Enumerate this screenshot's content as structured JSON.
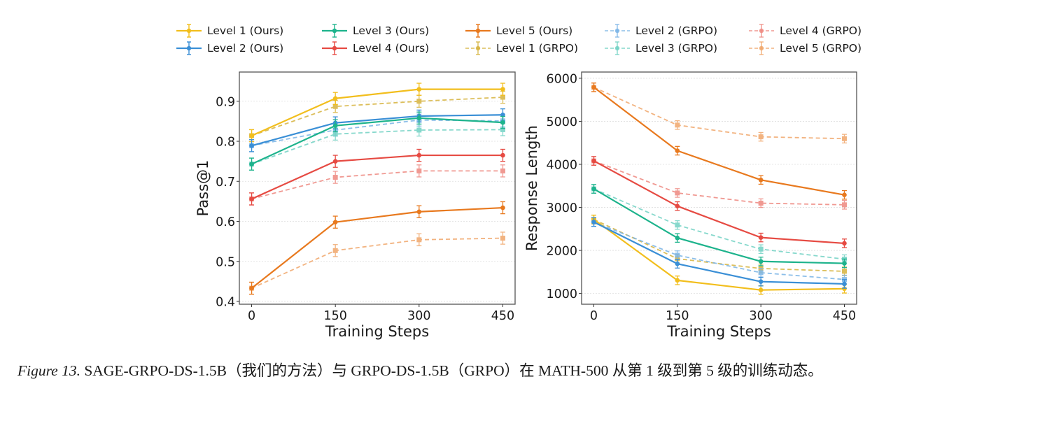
{
  "legend": [
    {
      "label": "Level 1 (Ours)",
      "color": "#F2BE1C",
      "dashed": false
    },
    {
      "label": "Level 2 (Ours)",
      "color": "#3A8FD6",
      "dashed": false
    },
    {
      "label": "Level 3 (Ours)",
      "color": "#1DB38C",
      "dashed": false
    },
    {
      "label": "Level 4 (Ours)",
      "color": "#E64A42",
      "dashed": false
    },
    {
      "label": "Level 5 (Ours)",
      "color": "#E8791E",
      "dashed": false
    },
    {
      "label": "Level 1 (GRPO)",
      "color": "#D6B33E",
      "dashed": true
    },
    {
      "label": "Level 2 (GRPO)",
      "color": "#7AB4E6",
      "dashed": true
    },
    {
      "label": "Level 3 (GRPO)",
      "color": "#72D2C4",
      "dashed": true
    },
    {
      "label": "Level 4 (GRPO)",
      "color": "#EE8880",
      "dashed": true
    },
    {
      "label": "Level 5 (GRPO)",
      "color": "#F0A66A",
      "dashed": true
    }
  ],
  "chart_data": [
    {
      "type": "line",
      "title": "",
      "xlabel": "Training Steps",
      "ylabel": "Pass@1",
      "x": [
        0,
        150,
        300,
        450
      ],
      "xticks": [
        "0",
        "150",
        "300",
        "450"
      ],
      "yticks": [
        "0.4",
        "0.5",
        "0.6",
        "0.7",
        "0.8",
        "0.9"
      ],
      "ytick_values": [
        0.4,
        0.5,
        0.6,
        0.7,
        0.8,
        0.9
      ],
      "ylim": [
        0.393,
        0.973
      ],
      "xlim": [
        -22,
        472
      ],
      "grid": true,
      "error_bar": 0.015,
      "series": [
        {
          "name": "Level 1 (Ours)",
          "values": [
            0.814,
            0.907,
            0.93,
            0.93
          ]
        },
        {
          "name": "Level 2 (Ours)",
          "values": [
            0.789,
            0.846,
            0.863,
            0.866
          ]
        },
        {
          "name": "Level 3 (Ours)",
          "values": [
            0.743,
            0.839,
            0.858,
            0.847
          ]
        },
        {
          "name": "Level 4 (Ours)",
          "values": [
            0.656,
            0.75,
            0.765,
            0.765
          ]
        },
        {
          "name": "Level 5 (Ours)",
          "values": [
            0.433,
            0.598,
            0.624,
            0.634
          ]
        },
        {
          "name": "Level 1 (GRPO)",
          "values": [
            0.814,
            0.887,
            0.9,
            0.91
          ]
        },
        {
          "name": "Level 2 (GRPO)",
          "values": [
            0.789,
            0.828,
            0.853,
            0.851
          ]
        },
        {
          "name": "Level 3 (GRPO)",
          "values": [
            0.743,
            0.818,
            0.828,
            0.829
          ]
        },
        {
          "name": "Level 4 (GRPO)",
          "values": [
            0.656,
            0.71,
            0.726,
            0.726
          ]
        },
        {
          "name": "Level 5 (GRPO)",
          "values": [
            0.433,
            0.527,
            0.554,
            0.558
          ]
        }
      ]
    },
    {
      "type": "line",
      "title": "",
      "xlabel": "Training Steps",
      "ylabel": "Response Length",
      "x": [
        0,
        150,
        300,
        450
      ],
      "xticks": [
        "0",
        "150",
        "300",
        "450"
      ],
      "yticks": [
        "1000",
        "2000",
        "3000",
        "4000",
        "5000",
        "6000"
      ],
      "ytick_values": [
        1000,
        2000,
        3000,
        4000,
        5000,
        6000
      ],
      "ylim": [
        750,
        6145
      ],
      "xlim": [
        -22,
        472
      ],
      "grid": true,
      "error_bar": 100,
      "series": [
        {
          "name": "Level 1 (Ours)",
          "values": [
            2720,
            1305,
            1080,
            1110
          ]
        },
        {
          "name": "Level 2 (Ours)",
          "values": [
            2660,
            1690,
            1275,
            1222
          ]
        },
        {
          "name": "Level 3 (Ours)",
          "values": [
            3430,
            2290,
            1745,
            1700
          ]
        },
        {
          "name": "Level 4 (Ours)",
          "values": [
            4080,
            3030,
            2300,
            2165
          ]
        },
        {
          "name": "Level 5 (Ours)",
          "values": [
            5790,
            4317,
            3638,
            3290
          ]
        },
        {
          "name": "Level 1 (GRPO)",
          "values": [
            2720,
            1808,
            1580,
            1515
          ]
        },
        {
          "name": "Level 2 (GRPO)",
          "values": [
            2660,
            1889,
            1483,
            1325
          ]
        },
        {
          "name": "Level 3 (GRPO)",
          "values": [
            3430,
            2590,
            2030,
            1797
          ]
        },
        {
          "name": "Level 4 (GRPO)",
          "values": [
            4080,
            3335,
            3098,
            3060
          ]
        },
        {
          "name": "Level 5 (GRPO)",
          "values": [
            5790,
            4913,
            4640,
            4597
          ]
        }
      ]
    }
  ],
  "caption": {
    "figure_label": "Figure 13.",
    "text": " SAGE-GRPO-DS-1.5B（我们的方法）与 GRPO-DS-1.5B（GRPO）在 MATH-500 从第 1 级到第 5 级的训练动态。"
  }
}
